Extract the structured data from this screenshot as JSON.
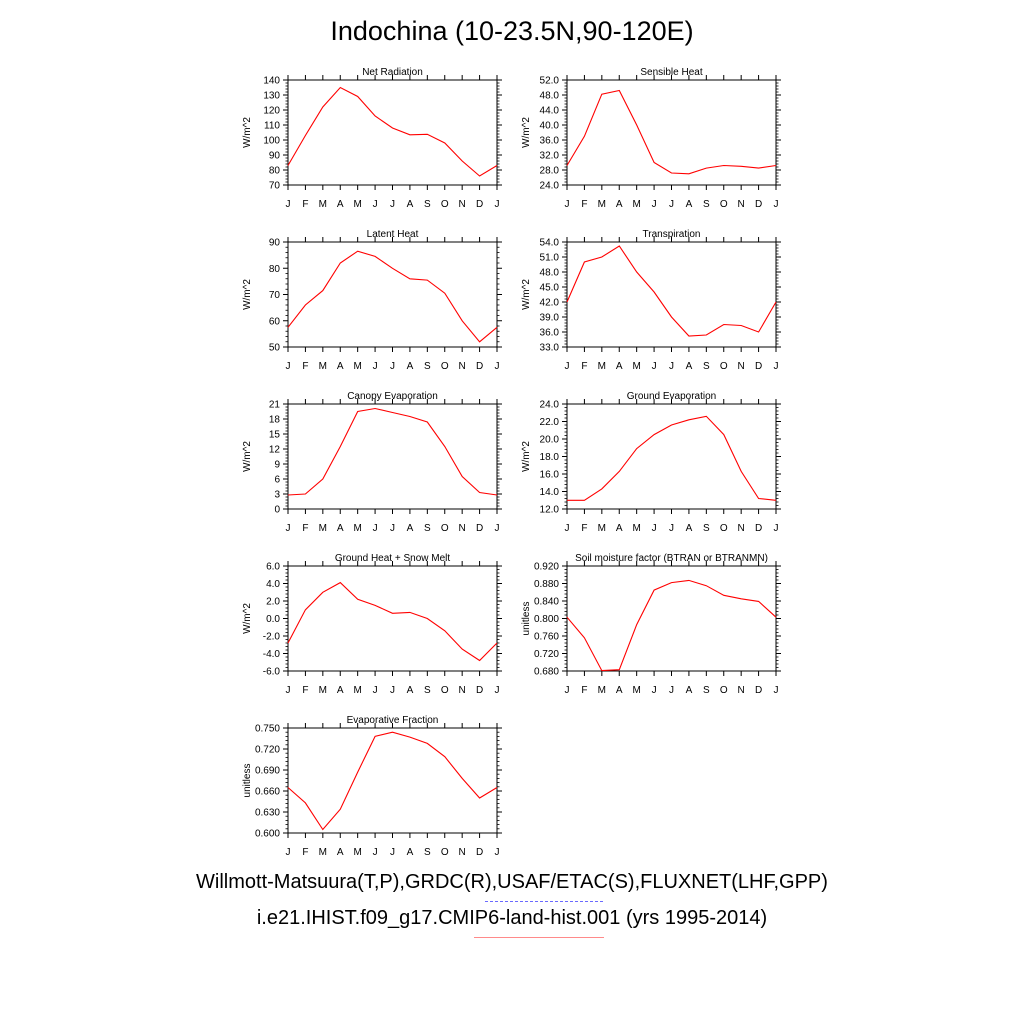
{
  "title": "Indochina (10-23.5N,90-120E)",
  "footer": {
    "obs_sources": "Willmott-Matsuura(T,P),GRDC(R),USAF/ETAC(S),FLUXNET(LHF,GPP)",
    "model_case": "i.e21.IHIST.f09_g17.CMIP6-land-hist.001 (yrs 1995-2014)"
  },
  "colors": {
    "model": "#ff0000",
    "obs_legend": "#6a6aff",
    "model_legend": "#ff8a8a"
  },
  "chart_data": [
    {
      "type": "line",
      "title": "Net Radiation",
      "ylabel": "W/m^2",
      "x": [
        "J",
        "F",
        "M",
        "A",
        "M",
        "J",
        "J",
        "A",
        "S",
        "O",
        "N",
        "D",
        "J"
      ],
      "ylim": [
        70,
        140
      ],
      "yticks": [
        "70",
        "80",
        "90",
        "100",
        "110",
        "120",
        "130",
        "140"
      ],
      "series": [
        {
          "values": [
            83,
            103,
            122,
            135,
            129,
            116,
            108,
            103.5,
            103.8,
            98,
            86,
            76,
            83
          ]
        }
      ]
    },
    {
      "type": "line",
      "title": "Sensible Heat",
      "ylabel": "W/m^2",
      "x": [
        "J",
        "F",
        "M",
        "A",
        "M",
        "J",
        "J",
        "A",
        "S",
        "O",
        "N",
        "D",
        "J"
      ],
      "ylim": [
        24,
        52
      ],
      "yticks": [
        "24.0",
        "28.0",
        "32.0",
        "36.0",
        "40.0",
        "44.0",
        "48.0",
        "52.0"
      ],
      "series": [
        {
          "values": [
            29.2,
            37,
            48.2,
            49.2,
            40,
            30,
            27.2,
            27,
            28.5,
            29.2,
            29,
            28.5,
            29.2
          ]
        }
      ]
    },
    {
      "type": "line",
      "title": "Latent Heat",
      "ylabel": "W/m^2",
      "x": [
        "J",
        "F",
        "M",
        "A",
        "M",
        "J",
        "J",
        "A",
        "S",
        "O",
        "N",
        "D",
        "J"
      ],
      "ylim": [
        50,
        90
      ],
      "yticks": [
        "50",
        "60",
        "70",
        "80",
        "90"
      ],
      "series": [
        {
          "values": [
            57.5,
            66,
            71.5,
            82,
            86.5,
            84.5,
            80,
            76,
            75.5,
            70.5,
            60,
            52,
            57.5
          ]
        }
      ]
    },
    {
      "type": "line",
      "title": "Transpiration",
      "ylabel": "W/m^2",
      "x": [
        "J",
        "F",
        "M",
        "A",
        "M",
        "J",
        "J",
        "A",
        "S",
        "O",
        "N",
        "D",
        "J"
      ],
      "ylim": [
        33,
        54
      ],
      "yticks": [
        "33.0",
        "36.0",
        "39.0",
        "42.0",
        "45.0",
        "48.0",
        "51.0",
        "54.0"
      ],
      "series": [
        {
          "values": [
            42,
            50,
            51,
            53.2,
            48,
            44,
            39,
            35.2,
            35.4,
            37.5,
            37.3,
            36,
            42
          ]
        }
      ]
    },
    {
      "type": "line",
      "title": "Canopy Evaporation",
      "ylabel": "W/m^2",
      "x": [
        "J",
        "F",
        "M",
        "A",
        "M",
        "J",
        "J",
        "A",
        "S",
        "O",
        "N",
        "D",
        "J"
      ],
      "ylim": [
        0,
        21
      ],
      "yticks": [
        "0",
        "3",
        "6",
        "9",
        "12",
        "15",
        "18",
        "21"
      ],
      "series": [
        {
          "values": [
            2.8,
            3,
            6,
            12.5,
            19.5,
            20.1,
            19.3,
            18.5,
            17.4,
            12.5,
            6.5,
            3.3,
            2.8
          ]
        }
      ]
    },
    {
      "type": "line",
      "title": "Ground Evaporation",
      "ylabel": "W/m^2",
      "x": [
        "J",
        "F",
        "M",
        "A",
        "M",
        "J",
        "J",
        "A",
        "S",
        "O",
        "N",
        "D",
        "J"
      ],
      "ylim": [
        12,
        24
      ],
      "yticks": [
        "12.0",
        "14.0",
        "16.0",
        "18.0",
        "20.0",
        "22.0",
        "24.0"
      ],
      "series": [
        {
          "values": [
            13,
            13,
            14.3,
            16.3,
            18.9,
            20.5,
            21.6,
            22.2,
            22.6,
            20.5,
            16.3,
            13.2,
            13
          ]
        }
      ]
    },
    {
      "type": "line",
      "title": "Ground Heat + Snow Melt",
      "ylabel": "W/m^2",
      "x": [
        "J",
        "F",
        "M",
        "A",
        "M",
        "J",
        "J",
        "A",
        "S",
        "O",
        "N",
        "D",
        "J"
      ],
      "ylim": [
        -6,
        6
      ],
      "yticks": [
        "-6.0",
        "-4.0",
        "-2.0",
        "0.0",
        "2.0",
        "4.0",
        "6.0"
      ],
      "series": [
        {
          "values": [
            -2.8,
            1,
            3,
            4.1,
            2.2,
            1.5,
            0.6,
            0.7,
            0,
            -1.4,
            -3.5,
            -4.8,
            -2.8
          ]
        }
      ]
    },
    {
      "type": "line",
      "title": "Soil moisture factor (BTRAN or BTRANMN)",
      "ylabel": "unitless",
      "x": [
        "J",
        "F",
        "M",
        "A",
        "M",
        "J",
        "J",
        "A",
        "S",
        "O",
        "N",
        "D",
        "J"
      ],
      "ylim": [
        0.68,
        0.92
      ],
      "yticks": [
        "0.680",
        "0.720",
        "0.760",
        "0.800",
        "0.840",
        "0.880",
        "0.920"
      ],
      "series": [
        {
          "values": [
            0.803,
            0.756,
            0.681,
            0.683,
            0.786,
            0.865,
            0.882,
            0.887,
            0.875,
            0.853,
            0.845,
            0.839,
            0.803
          ]
        }
      ]
    },
    {
      "type": "line",
      "title": "Evaporative Fraction",
      "ylabel": "unitless",
      "x": [
        "J",
        "F",
        "M",
        "A",
        "M",
        "J",
        "J",
        "A",
        "S",
        "O",
        "N",
        "D",
        "J"
      ],
      "ylim": [
        0.6,
        0.75
      ],
      "yticks": [
        "0.600",
        "0.630",
        "0.660",
        "0.690",
        "0.720",
        "0.750"
      ],
      "series": [
        {
          "values": [
            0.665,
            0.643,
            0.605,
            0.634,
            0.687,
            0.738,
            0.744,
            0.737,
            0.728,
            0.709,
            0.678,
            0.65,
            0.665
          ]
        }
      ]
    }
  ]
}
